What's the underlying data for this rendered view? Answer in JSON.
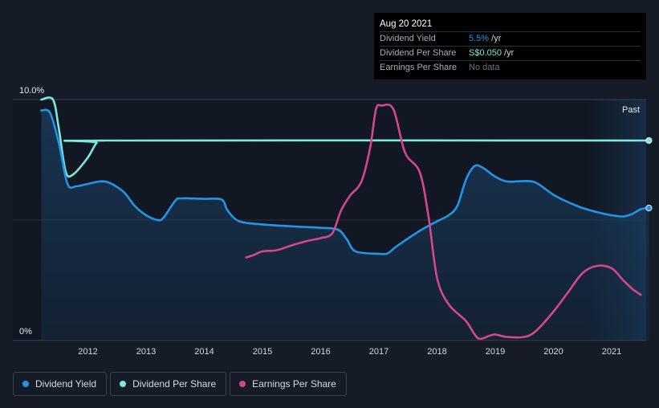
{
  "tooltip": {
    "date": "Aug 20 2021",
    "rows": [
      {
        "label": "Dividend Yield",
        "value": "5.5%",
        "unit": " /yr"
      },
      {
        "label": "Dividend Per Share",
        "value": "S$0.050",
        "unit": " /yr"
      },
      {
        "label": "Earnings Per Share",
        "value": "No data",
        "unit": ""
      }
    ]
  },
  "legend": [
    {
      "label": "Dividend Yield",
      "color": "#2394e6"
    },
    {
      "label": "Dividend Per Share",
      "color": "#7fe8d6"
    },
    {
      "label": "Earnings Per Share",
      "color": "#d3488b"
    }
  ],
  "past_label": "Past",
  "chart_data": {
    "type": "line",
    "ylim": [
      0,
      10
    ],
    "y_tick_labels": [
      "10.0%",
      "0%"
    ],
    "x_tick_labels": [
      "2012",
      "2013",
      "2014",
      "2015",
      "2016",
      "2017",
      "2018",
      "2019",
      "2020",
      "2021"
    ],
    "xlim": [
      2011.0,
      2021.65
    ],
    "grid": true,
    "legend_position": "bottom-left",
    "series": [
      {
        "name": "Dividend Yield",
        "color": "#2394e6",
        "area": true,
        "points": [
          [
            2011.2,
            9.55
          ],
          [
            2011.35,
            9.45
          ],
          [
            2011.5,
            8.2
          ],
          [
            2011.65,
            6.5
          ],
          [
            2011.8,
            6.4
          ],
          [
            2012.0,
            6.5
          ],
          [
            2012.3,
            6.6
          ],
          [
            2012.6,
            6.2
          ],
          [
            2012.8,
            5.6
          ],
          [
            2013.0,
            5.2
          ],
          [
            2013.2,
            5.0
          ],
          [
            2013.3,
            5.1
          ],
          [
            2013.5,
            5.8
          ],
          [
            2013.6,
            5.9
          ],
          [
            2014.0,
            5.88
          ],
          [
            2014.3,
            5.85
          ],
          [
            2014.4,
            5.4
          ],
          [
            2014.6,
            4.95
          ],
          [
            2015.0,
            4.82
          ],
          [
            2015.5,
            4.74
          ],
          [
            2016.0,
            4.68
          ],
          [
            2016.3,
            4.6
          ],
          [
            2016.45,
            4.2
          ],
          [
            2016.6,
            3.7
          ],
          [
            2017.0,
            3.6
          ],
          [
            2017.15,
            3.62
          ],
          [
            2017.3,
            3.9
          ],
          [
            2017.7,
            4.55
          ],
          [
            2018.0,
            4.95
          ],
          [
            2018.2,
            5.2
          ],
          [
            2018.35,
            5.6
          ],
          [
            2018.5,
            6.7
          ],
          [
            2018.65,
            7.25
          ],
          [
            2018.8,
            7.15
          ],
          [
            2019.0,
            6.8
          ],
          [
            2019.2,
            6.6
          ],
          [
            2019.5,
            6.62
          ],
          [
            2019.7,
            6.55
          ],
          [
            2020.0,
            6.05
          ],
          [
            2020.2,
            5.8
          ],
          [
            2020.5,
            5.5
          ],
          [
            2020.8,
            5.3
          ],
          [
            2021.0,
            5.2
          ],
          [
            2021.2,
            5.15
          ],
          [
            2021.35,
            5.25
          ],
          [
            2021.5,
            5.45
          ],
          [
            2021.64,
            5.5
          ]
        ]
      },
      {
        "name": "Dividend Per Share",
        "color": "#7fe8d6",
        "area": false,
        "points": [
          [
            2011.2,
            10.0
          ],
          [
            2011.4,
            10.0
          ],
          [
            2011.5,
            8.8
          ],
          [
            2011.62,
            7.0
          ],
          [
            2011.75,
            6.9
          ],
          [
            2012.0,
            7.6
          ],
          [
            2012.15,
            8.2
          ],
          [
            2012.3,
            8.3
          ],
          [
            2021.64,
            8.3
          ]
        ]
      },
      {
        "name": "Earnings Per Share",
        "color": "#d3488b",
        "area": false,
        "points": [
          [
            2014.72,
            3.45
          ],
          [
            2014.85,
            3.55
          ],
          [
            2015.0,
            3.7
          ],
          [
            2015.25,
            3.75
          ],
          [
            2015.5,
            3.95
          ],
          [
            2015.8,
            4.15
          ],
          [
            2016.0,
            4.25
          ],
          [
            2016.2,
            4.45
          ],
          [
            2016.35,
            5.4
          ],
          [
            2016.5,
            6.0
          ],
          [
            2016.7,
            6.6
          ],
          [
            2016.85,
            8.0
          ],
          [
            2016.95,
            9.6
          ],
          [
            2017.05,
            9.75
          ],
          [
            2017.25,
            9.6
          ],
          [
            2017.45,
            7.8
          ],
          [
            2017.7,
            7.0
          ],
          [
            2017.85,
            5.2
          ],
          [
            2018.0,
            2.6
          ],
          [
            2018.2,
            1.5
          ],
          [
            2018.5,
            0.8
          ],
          [
            2018.7,
            0.1
          ],
          [
            2018.9,
            0.2
          ],
          [
            2019.0,
            0.25
          ],
          [
            2019.2,
            0.15
          ],
          [
            2019.5,
            0.15
          ],
          [
            2019.7,
            0.4
          ],
          [
            2020.0,
            1.2
          ],
          [
            2020.25,
            2.0
          ],
          [
            2020.5,
            2.8
          ],
          [
            2020.75,
            3.1
          ],
          [
            2021.0,
            3.0
          ],
          [
            2021.2,
            2.5
          ],
          [
            2021.35,
            2.15
          ],
          [
            2021.5,
            1.9
          ]
        ]
      }
    ]
  }
}
